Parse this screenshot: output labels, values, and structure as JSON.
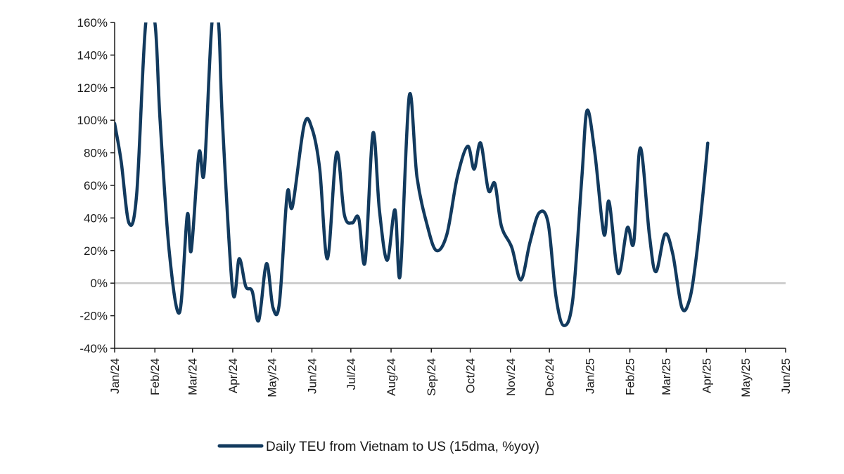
{
  "chart_data": {
    "type": "line",
    "title": "",
    "xlabel": "",
    "ylabel": "",
    "ylim": [
      -40,
      160
    ],
    "yticks": [
      "160%",
      "140%",
      "120%",
      "100%",
      "80%",
      "60%",
      "40%",
      "20%",
      "0%",
      "-20%",
      "-40%"
    ],
    "ytick_values": [
      160,
      140,
      120,
      100,
      80,
      60,
      40,
      20,
      0,
      -20,
      -40
    ],
    "xlim": [
      "2024-01-01",
      "2025-06-01"
    ],
    "xticks": [
      "Jan/24",
      "Feb/24",
      "Mar/24",
      "Apr/24",
      "May/24",
      "Jun/24",
      "Jul/24",
      "Aug/24",
      "Sep/24",
      "Oct/24",
      "Nov/24",
      "Dec/24",
      "Jan/25",
      "Feb/25",
      "Mar/25",
      "Apr/25",
      "May/25",
      "Jun/25"
    ],
    "xtick_dates": [
      "2024-01-01",
      "2024-02-01",
      "2024-03-01",
      "2024-04-01",
      "2024-05-01",
      "2024-06-01",
      "2024-07-01",
      "2024-08-01",
      "2024-09-01",
      "2024-10-01",
      "2024-11-01",
      "2024-12-01",
      "2025-01-01",
      "2025-02-01",
      "2025-03-01",
      "2025-04-01",
      "2025-05-01",
      "2025-06-01"
    ],
    "grid": false,
    "zero_line": true,
    "legend_position": "bottom",
    "colors": {
      "series": "#123a5e",
      "zero_line": "#c8c8c8",
      "axis": "#1a1a1a"
    },
    "series": [
      {
        "name": "Daily TEU from Vietnam to US (15dma, %yoy)",
        "points": [
          [
            "2024-01-01",
            98
          ],
          [
            "2024-01-06",
            75
          ],
          [
            "2024-01-12",
            37
          ],
          [
            "2024-01-18",
            55
          ],
          [
            "2024-01-25",
            160
          ],
          [
            "2024-02-01",
            160
          ],
          [
            "2024-02-05",
            100
          ],
          [
            "2024-02-12",
            20
          ],
          [
            "2024-02-20",
            -18
          ],
          [
            "2024-02-26",
            42
          ],
          [
            "2024-02-29",
            20
          ],
          [
            "2024-03-06",
            80
          ],
          [
            "2024-03-10",
            68
          ],
          [
            "2024-03-16",
            160
          ],
          [
            "2024-03-21",
            160
          ],
          [
            "2024-03-24",
            100
          ],
          [
            "2024-04-01",
            -5
          ],
          [
            "2024-04-06",
            15
          ],
          [
            "2024-04-11",
            -2
          ],
          [
            "2024-04-16",
            -5
          ],
          [
            "2024-04-21",
            -23
          ],
          [
            "2024-04-27",
            12
          ],
          [
            "2024-05-02",
            -15
          ],
          [
            "2024-05-07",
            -12
          ],
          [
            "2024-05-13",
            55
          ],
          [
            "2024-05-17",
            47
          ],
          [
            "2024-05-26",
            97
          ],
          [
            "2024-06-01",
            95
          ],
          [
            "2024-06-07",
            70
          ],
          [
            "2024-06-13",
            15
          ],
          [
            "2024-06-20",
            80
          ],
          [
            "2024-06-26",
            42
          ],
          [
            "2024-07-02",
            37
          ],
          [
            "2024-07-07",
            40
          ],
          [
            "2024-07-12",
            13
          ],
          [
            "2024-07-18",
            92
          ],
          [
            "2024-07-23",
            45
          ],
          [
            "2024-07-29",
            14
          ],
          [
            "2024-08-04",
            45
          ],
          [
            "2024-08-08",
            5
          ],
          [
            "2024-08-15",
            115
          ],
          [
            "2024-08-21",
            65
          ],
          [
            "2024-08-29",
            35
          ],
          [
            "2024-09-05",
            20
          ],
          [
            "2024-09-13",
            30
          ],
          [
            "2024-09-21",
            65
          ],
          [
            "2024-09-29",
            84
          ],
          [
            "2024-10-04",
            70
          ],
          [
            "2024-10-09",
            86
          ],
          [
            "2024-10-15",
            57
          ],
          [
            "2024-10-20",
            61
          ],
          [
            "2024-10-25",
            35
          ],
          [
            "2024-11-02",
            22
          ],
          [
            "2024-11-09",
            2
          ],
          [
            "2024-11-16",
            25
          ],
          [
            "2024-11-23",
            43
          ],
          [
            "2024-11-30",
            37
          ],
          [
            "2024-12-06",
            -8
          ],
          [
            "2024-12-12",
            -26
          ],
          [
            "2024-12-19",
            -10
          ],
          [
            "2024-12-26",
            65
          ],
          [
            "2024-12-30",
            106
          ],
          [
            "2025-01-05",
            80
          ],
          [
            "2025-01-12",
            30
          ],
          [
            "2025-01-16",
            50
          ],
          [
            "2025-01-23",
            6
          ],
          [
            "2025-01-30",
            34
          ],
          [
            "2025-02-04",
            25
          ],
          [
            "2025-02-09",
            83
          ],
          [
            "2025-02-16",
            30
          ],
          [
            "2025-02-21",
            7
          ],
          [
            "2025-02-28",
            30
          ],
          [
            "2025-03-06",
            18
          ],
          [
            "2025-03-13",
            -15
          ],
          [
            "2025-03-19",
            -10
          ],
          [
            "2025-03-24",
            15
          ],
          [
            "2025-03-30",
            60
          ],
          [
            "2025-04-02",
            86
          ]
        ]
      }
    ]
  }
}
